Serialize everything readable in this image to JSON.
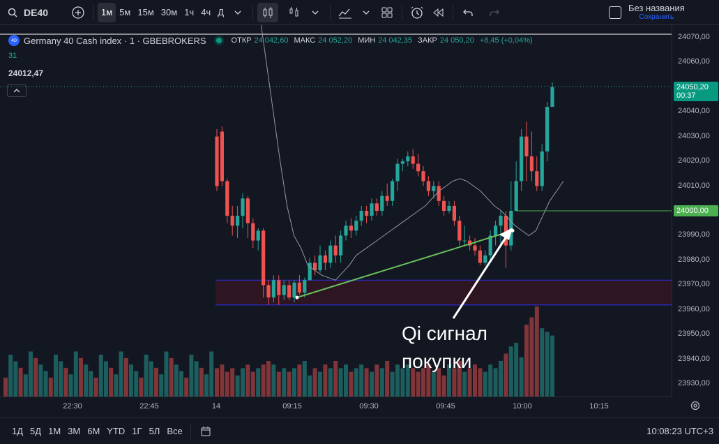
{
  "toolbar": {
    "search_icon": "search-icon",
    "symbol": "DE40",
    "add_icon": "plus-circle-icon",
    "intervals": [
      "1м",
      "5м",
      "15м",
      "30м",
      "1ч",
      "4ч",
      "Д"
    ],
    "active_interval": "1м",
    "layout_name": "Без названия",
    "save_status": "Сохранить"
  },
  "legend": {
    "badge": "40",
    "title": "Germany 40 Cash index · 1 · GBEBROKERS",
    "open_label": "ОТКР",
    "open": "24 042,60",
    "high_label": "МАКС",
    "high": "24 052,20",
    "low_label": "МИН",
    "low": "24 042,35",
    "close_label": "ЗАКР",
    "close": "24 050,20",
    "change": "+8,45 (+0,04%)",
    "indicator": "31",
    "left_price": "24012,47"
  },
  "price_axis": {
    "ticks": [
      "24070,00",
      "24060,00",
      "24050,00",
      "24040,00",
      "24030,00",
      "24020,00",
      "24010,00",
      "24000,00",
      "23990,00",
      "23980,00",
      "23970,00",
      "23960,00",
      "23950,00",
      "23940,00",
      "23930,00"
    ],
    "current_price": "24050,20",
    "countdown": "00:37",
    "level_price": "24000,00",
    "accent_up": "#26a69a",
    "accent_down": "#ef5350"
  },
  "time_axis": {
    "ticks": [
      "22:30",
      "22:45",
      "14",
      "09:15",
      "09:30",
      "09:45",
      "10:00",
      "10:15"
    ]
  },
  "annotation": {
    "line1": "Qi сигнал",
    "line2": "покупки"
  },
  "bottombar": {
    "ranges": [
      "1Д",
      "5Д",
      "1М",
      "3М",
      "6М",
      "YTD",
      "1Г",
      "5Л",
      "Все"
    ],
    "clock": "10:08:23 UTC+3"
  },
  "chart_data": {
    "type": "candlestick",
    "ylim": [
      23925,
      24075
    ],
    "candles": [
      [
        24030,
        24010,
        24033,
        24008
      ],
      [
        24032,
        24012,
        24034,
        24010
      ],
      [
        24012,
        23998,
        24013,
        23995
      ],
      [
        23998,
        23994,
        24002,
        23990
      ],
      [
        23994,
        23998,
        24002,
        23989
      ],
      [
        23998,
        24005,
        24007,
        23993
      ],
      [
        24005,
        23995,
        24006,
        23989
      ],
      [
        23995,
        23988,
        23997,
        23985
      ],
      [
        23988,
        23992,
        23993,
        23984
      ],
      [
        23992,
        23970,
        23993,
        23965
      ],
      [
        23970,
        23965,
        23972,
        23962
      ],
      [
        23965,
        23972,
        23974,
        23963
      ],
      [
        23972,
        23966,
        23974,
        23962
      ],
      [
        23966,
        23970,
        23972,
        23964
      ],
      [
        23970,
        23965,
        23972,
        23964
      ],
      [
        23965,
        23971,
        23972,
        23963
      ],
      [
        23971,
        23967,
        23974,
        23966
      ],
      [
        23967,
        23972,
        23973,
        23965
      ],
      [
        23972,
        23979,
        23981,
        23975
      ],
      [
        23979,
        23976,
        23982,
        23974
      ],
      [
        23976,
        23982,
        23986,
        23975
      ],
      [
        23982,
        23979,
        23984,
        23976
      ],
      [
        23979,
        23986,
        23988,
        23977
      ],
      [
        23986,
        23982,
        23990,
        23979
      ],
      [
        23982,
        23990,
        23992,
        23979
      ],
      [
        23990,
        23994,
        23996,
        23988
      ],
      [
        23994,
        23992,
        23997,
        23989
      ],
      [
        23992,
        23996,
        23998,
        23990
      ],
      [
        23996,
        24000,
        24002,
        23994
      ],
      [
        24000,
        23998,
        24002,
        23995
      ],
      [
        23998,
        24003,
        24005,
        23996
      ],
      [
        24003,
        24000,
        24005,
        23998
      ],
      [
        24000,
        24006,
        24008,
        23998
      ],
      [
        24006,
        24004,
        24011,
        24002
      ],
      [
        24004,
        24012,
        24013,
        24002
      ],
      [
        24012,
        24019,
        24021,
        24008
      ],
      [
        24019,
        24020,
        24021,
        24016
      ],
      [
        24020,
        24022,
        24024,
        24018
      ],
      [
        24022,
        24019,
        24025,
        24017
      ],
      [
        24019,
        24016,
        24023,
        24014
      ],
      [
        24016,
        24012,
        24018,
        24010
      ],
      [
        24012,
        24008,
        24014,
        24006
      ],
      [
        24008,
        24010,
        24012,
        24005
      ],
      [
        24010,
        24004,
        24012,
        24002
      ],
      [
        24004,
        24000,
        24006,
        23998
      ],
      [
        24000,
        24002,
        24004,
        23999
      ],
      [
        24002,
        23996,
        24004,
        23994
      ],
      [
        23996,
        23988,
        23998,
        23986
      ],
      [
        23988,
        23988,
        23994,
        23986
      ],
      [
        23988,
        23986,
        23990,
        23984
      ],
      [
        23986,
        23984,
        23989,
        23982
      ],
      [
        23984,
        23979,
        23986,
        23978
      ],
      [
        23979,
        23982,
        23984,
        23978
      ],
      [
        23982,
        23990,
        23992,
        23980
      ],
      [
        23990,
        23994,
        23996,
        23986
      ],
      [
        23994,
        23998,
        24000,
        23986
      ],
      [
        23998,
        23986,
        24000,
        23977
      ],
      [
        23986,
        24000,
        24012,
        23984
      ],
      [
        24000,
        24012,
        24020,
        24010
      ],
      [
        24012,
        24030,
        24033,
        24008
      ],
      [
        24030,
        24022,
        24036,
        24012
      ],
      [
        24022,
        24016,
        24032,
        24012
      ],
      [
        24016,
        24010,
        24022,
        24008
      ],
      [
        24010,
        24024,
        24027,
        24008
      ],
      [
        24024,
        24042,
        24044,
        24020
      ],
      [
        24042,
        24050,
        24052,
        24042
      ]
    ],
    "volume": [
      8,
      9,
      7,
      8,
      6,
      8,
      9,
      7,
      8,
      9,
      10,
      9,
      7,
      8,
      7,
      8,
      9,
      10,
      6,
      8,
      7,
      9,
      8,
      10,
      8,
      9,
      7,
      8,
      9,
      8,
      7,
      9,
      8,
      10,
      7,
      9,
      8,
      9,
      8,
      7,
      8,
      9,
      7,
      8,
      6,
      9,
      8,
      10,
      7,
      8,
      9,
      8,
      7,
      9,
      8,
      10,
      12,
      14,
      15,
      11,
      20,
      22,
      25,
      19,
      18,
      17
    ],
    "ma": [
      24080,
      24060,
      24040,
      24020,
      24002,
      23990,
      23985,
      23978,
      23976,
      23974,
      23973,
      23972,
      23975,
      23978,
      23982,
      23984,
      23986,
      23988,
      23990,
      23992,
      23994,
      23996,
      23998,
      24000,
      24002,
      24005,
      24008,
      24010,
      24012,
      24013,
      24012,
      24010,
      24008,
      24005,
      24002,
      24000,
      23997,
      23994,
      23992,
      23990,
      23992,
      23998,
      24004,
      24008,
      24012
    ]
  }
}
